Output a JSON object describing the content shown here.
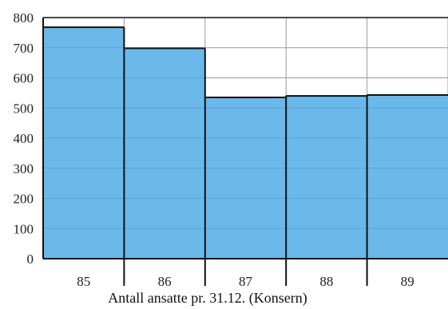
{
  "chart_data": {
    "type": "bar",
    "categories": [
      "85",
      "86",
      "87",
      "88",
      "89"
    ],
    "values": [
      768,
      698,
      535,
      540,
      543
    ],
    "ylim": [
      0,
      800
    ],
    "yticks": [
      0,
      100,
      200,
      300,
      400,
      500,
      600,
      700,
      800
    ],
    "xlabel": "Antall ansatte pr. 31.12. (Konsern)",
    "ylabel": "",
    "title": "",
    "grid": true,
    "colors": {
      "bar_fill": "#6bb8ea",
      "bar_edge": "#111111",
      "grid_line": "#9a9a9a",
      "axis_line": "#111111"
    }
  }
}
